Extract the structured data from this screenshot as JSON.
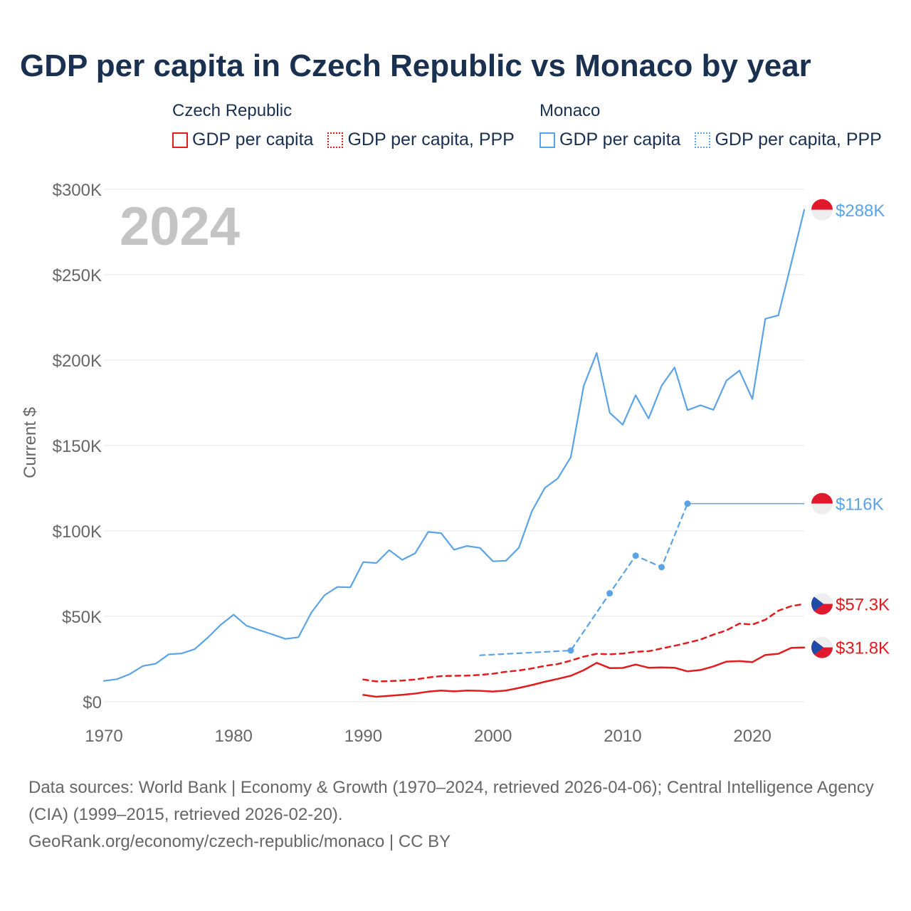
{
  "title": "GDP per capita in Czech Republic vs Monaco by year",
  "legend": {
    "czech_title": "Czech Republic",
    "czech_gdp": "GDP per capita",
    "czech_ppp": "GDP per capita, PPP",
    "monaco_title": "Monaco",
    "monaco_gdp": "GDP per capita",
    "monaco_ppp": "GDP per capita, PPP"
  },
  "colors": {
    "czech": "#e41a1c",
    "monaco": "#5aa3e6",
    "year_watermark": "#c4c4c4"
  },
  "chart_data": {
    "type": "line",
    "title": "GDP per capita in Czech Republic vs Monaco by year",
    "year_label": "2024",
    "ylabel": "Current $",
    "xlim": [
      1970,
      2024
    ],
    "ylim": [
      0,
      300000
    ],
    "x_ticks": [
      1970,
      1980,
      1990,
      2000,
      2010,
      2020
    ],
    "y_ticks": [
      0,
      50000,
      100000,
      150000,
      200000,
      250000,
      300000
    ],
    "y_tick_labels": [
      "$0",
      "$50K",
      "$100K",
      "$150K",
      "$200K",
      "$250K",
      "$300K"
    ],
    "series": [
      {
        "name": "Monaco GDP per capita",
        "country": "monaco",
        "style": "solid",
        "end_label": "$288K",
        "points": [
          [
            1970,
            12200
          ],
          [
            1971,
            13200
          ],
          [
            1972,
            16200
          ],
          [
            1973,
            20900
          ],
          [
            1974,
            22300
          ],
          [
            1975,
            27800
          ],
          [
            1976,
            28300
          ],
          [
            1977,
            30800
          ],
          [
            1978,
            37500
          ],
          [
            1979,
            45000
          ],
          [
            1980,
            51000
          ],
          [
            1981,
            44500
          ],
          [
            1982,
            41900
          ],
          [
            1983,
            39400
          ],
          [
            1984,
            36800
          ],
          [
            1985,
            37800
          ],
          [
            1986,
            52300
          ],
          [
            1987,
            62300
          ],
          [
            1988,
            67200
          ],
          [
            1989,
            67000
          ],
          [
            1990,
            81800
          ],
          [
            1991,
            81200
          ],
          [
            1992,
            88800
          ],
          [
            1993,
            83100
          ],
          [
            1994,
            86900
          ],
          [
            1995,
            99400
          ],
          [
            1996,
            98700
          ],
          [
            1997,
            89000
          ],
          [
            1998,
            91200
          ],
          [
            1999,
            90100
          ],
          [
            2000,
            82200
          ],
          [
            2001,
            82600
          ],
          [
            2002,
            90200
          ],
          [
            2003,
            111500
          ],
          [
            2004,
            125200
          ],
          [
            2005,
            130800
          ],
          [
            2006,
            143200
          ],
          [
            2007,
            185000
          ],
          [
            2008,
            204200
          ],
          [
            2009,
            169200
          ],
          [
            2010,
            162200
          ],
          [
            2011,
            179400
          ],
          [
            2012,
            165800
          ],
          [
            2013,
            185000
          ],
          [
            2014,
            195700
          ],
          [
            2015,
            170700
          ],
          [
            2016,
            173600
          ],
          [
            2017,
            170900
          ],
          [
            2018,
            188000
          ],
          [
            2019,
            193900
          ],
          [
            2020,
            177200
          ],
          [
            2021,
            224200
          ],
          [
            2022,
            226200
          ],
          [
            2023,
            256800
          ],
          [
            2024,
            288000
          ]
        ]
      },
      {
        "name": "Monaco GDP per capita, PPP",
        "country": "monaco",
        "style": "dashed",
        "end_label": "$116K",
        "points": [
          [
            1999,
            27200
          ],
          [
            2006,
            30000
          ],
          [
            2009,
            63500
          ],
          [
            2011,
            85500
          ],
          [
            2013,
            78800
          ],
          [
            2015,
            116000
          ]
        ],
        "markers": [
          2006,
          2009,
          2011,
          2013,
          2015
        ],
        "extend_to": 2024
      },
      {
        "name": "Czech Republic GDP per capita, PPP",
        "country": "czech",
        "style": "dashed",
        "end_label": "$57.3K",
        "points": [
          [
            1990,
            13000
          ],
          [
            1991,
            11900
          ],
          [
            1992,
            12100
          ],
          [
            1993,
            12400
          ],
          [
            1994,
            13000
          ],
          [
            1995,
            14200
          ],
          [
            1996,
            15000
          ],
          [
            1997,
            15200
          ],
          [
            1998,
            15300
          ],
          [
            1999,
            15700
          ],
          [
            2000,
            16400
          ],
          [
            2001,
            17600
          ],
          [
            2002,
            18300
          ],
          [
            2003,
            19500
          ],
          [
            2004,
            21000
          ],
          [
            2005,
            22100
          ],
          [
            2006,
            24100
          ],
          [
            2007,
            26400
          ],
          [
            2008,
            28100
          ],
          [
            2009,
            27800
          ],
          [
            2010,
            28200
          ],
          [
            2011,
            29300
          ],
          [
            2012,
            29600
          ],
          [
            2013,
            31200
          ],
          [
            2014,
            32800
          ],
          [
            2015,
            34500
          ],
          [
            2016,
            36400
          ],
          [
            2017,
            39300
          ],
          [
            2018,
            41800
          ],
          [
            2019,
            45800
          ],
          [
            2020,
            45200
          ],
          [
            2021,
            48000
          ],
          [
            2022,
            53300
          ],
          [
            2023,
            56000
          ],
          [
            2024,
            57300
          ]
        ]
      },
      {
        "name": "Czech Republic GDP per capita",
        "country": "czech",
        "style": "solid",
        "end_label": "$31.8K",
        "points": [
          [
            1990,
            4000
          ],
          [
            1991,
            2900
          ],
          [
            1992,
            3500
          ],
          [
            1993,
            4100
          ],
          [
            1994,
            4800
          ],
          [
            1995,
            5900
          ],
          [
            1996,
            6600
          ],
          [
            1997,
            6100
          ],
          [
            1998,
            6600
          ],
          [
            1999,
            6400
          ],
          [
            2000,
            6000
          ],
          [
            2001,
            6600
          ],
          [
            2002,
            8100
          ],
          [
            2003,
            9800
          ],
          [
            2004,
            11700
          ],
          [
            2005,
            13400
          ],
          [
            2006,
            15200
          ],
          [
            2007,
            18500
          ],
          [
            2008,
            22800
          ],
          [
            2009,
            19700
          ],
          [
            2010,
            19800
          ],
          [
            2011,
            21800
          ],
          [
            2012,
            19900
          ],
          [
            2013,
            20100
          ],
          [
            2014,
            19900
          ],
          [
            2015,
            17800
          ],
          [
            2016,
            18600
          ],
          [
            2017,
            20700
          ],
          [
            2018,
            23500
          ],
          [
            2019,
            23800
          ],
          [
            2020,
            23200
          ],
          [
            2021,
            27400
          ],
          [
            2022,
            28100
          ],
          [
            2023,
            31600
          ],
          [
            2024,
            31800
          ]
        ]
      }
    ]
  },
  "source": {
    "line1": "Data sources: World Bank | Economy & Growth (1970–2024, retrieved 2026-04-06); Central Intelligence Agency (CIA) (1999–2015, retrieved 2026-02-20).",
    "line2": "GeoRank.org/economy/czech-republic/monaco | CC BY"
  }
}
